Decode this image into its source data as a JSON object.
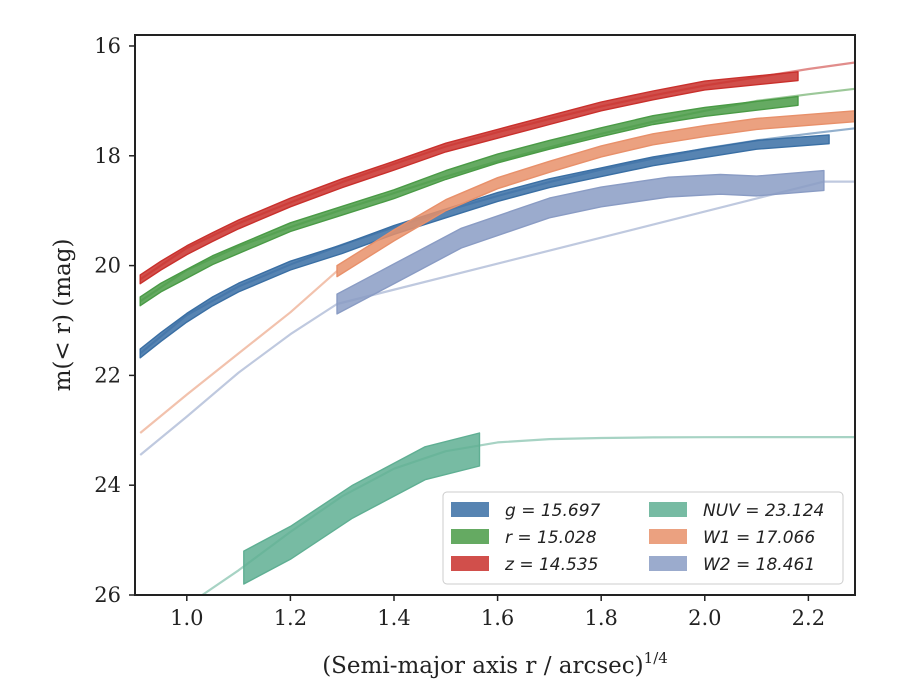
{
  "chart_data": {
    "type": "line",
    "xlabel": "(Semi-major axis r / arcsec)",
    "xlabel_sup": "1/4",
    "ylabel": "m(< r) (mag)",
    "xlim": [
      0.9,
      2.29
    ],
    "ylim": [
      26,
      15.8
    ],
    "y_inverted": true,
    "x_ticks": [
      1.0,
      1.2,
      1.4,
      1.6,
      1.8,
      2.0,
      2.2
    ],
    "x_tick_labels": [
      "1.0",
      "1.2",
      "1.4",
      "1.6",
      "1.8",
      "2.0",
      "2.2"
    ],
    "y_ticks": [
      16,
      18,
      20,
      22,
      24,
      26
    ],
    "y_tick_labels": [
      "16",
      "18",
      "20",
      "22",
      "24",
      "26"
    ],
    "grid": false,
    "legend_position": "lower-right",
    "legend_columns": 2,
    "series": [
      {
        "name": "g = 15.697",
        "color": "#3a6fa4",
        "observed": {
          "x": [
            0.91,
            0.95,
            1.0,
            1.05,
            1.1,
            1.2,
            1.3,
            1.4,
            1.5,
            1.6,
            1.7,
            1.8,
            1.9,
            2.0,
            2.1,
            2.24
          ],
          "y": [
            21.6,
            21.3,
            20.95,
            20.65,
            20.4,
            20.0,
            19.7,
            19.35,
            19.05,
            18.75,
            18.5,
            18.3,
            18.1,
            17.95,
            17.8,
            17.7
          ],
          "band": 0.08
        },
        "model": {
          "x": [
            0.91,
            1.0,
            1.1,
            1.2,
            1.3,
            1.4,
            1.5,
            1.6,
            1.7,
            1.8,
            1.9,
            2.0,
            2.1,
            2.2,
            2.29
          ],
          "y": [
            21.6,
            20.9,
            20.38,
            19.98,
            19.62,
            19.3,
            19.0,
            18.73,
            18.48,
            18.25,
            18.05,
            17.87,
            17.72,
            17.6,
            17.5
          ]
        }
      },
      {
        "name": "r = 15.028",
        "color": "#4a9b46",
        "observed": {
          "x": [
            0.91,
            0.95,
            1.0,
            1.05,
            1.1,
            1.2,
            1.3,
            1.4,
            1.5,
            1.6,
            1.7,
            1.8,
            1.9,
            2.0,
            2.18
          ],
          "y": [
            20.65,
            20.4,
            20.15,
            19.9,
            19.7,
            19.3,
            19.0,
            18.7,
            18.35,
            18.05,
            17.8,
            17.57,
            17.35,
            17.2,
            17.0
          ],
          "band": 0.08
        },
        "model": {
          "x": [
            0.91,
            1.0,
            1.1,
            1.2,
            1.3,
            1.4,
            1.5,
            1.6,
            1.7,
            1.8,
            1.9,
            2.0,
            2.1,
            2.2,
            2.29
          ],
          "y": [
            20.65,
            20.08,
            19.65,
            19.3,
            18.98,
            18.68,
            18.38,
            18.1,
            17.85,
            17.6,
            17.38,
            17.18,
            17.0,
            16.88,
            16.78
          ]
        }
      },
      {
        "name": "z = 14.535",
        "color": "#c9302c",
        "observed": {
          "x": [
            0.91,
            0.95,
            1.0,
            1.05,
            1.1,
            1.2,
            1.3,
            1.4,
            1.5,
            1.6,
            1.7,
            1.8,
            1.9,
            2.0,
            2.18
          ],
          "y": [
            20.25,
            20.0,
            19.72,
            19.48,
            19.25,
            18.85,
            18.5,
            18.18,
            17.85,
            17.6,
            17.35,
            17.1,
            16.9,
            16.72,
            16.55
          ],
          "band": 0.08
        },
        "model": {
          "x": [
            0.91,
            1.0,
            1.1,
            1.2,
            1.3,
            1.4,
            1.5,
            1.6,
            1.7,
            1.8,
            1.9,
            2.0,
            2.1,
            2.2,
            2.29
          ],
          "y": [
            20.25,
            19.68,
            19.23,
            18.85,
            18.48,
            18.15,
            17.83,
            17.57,
            17.33,
            17.1,
            16.9,
            16.72,
            16.57,
            16.42,
            16.3
          ]
        }
      },
      {
        "name": "NUV = 23.124",
        "color": "#5faf93",
        "observed": {
          "x": [
            1.11,
            1.2,
            1.32,
            1.46,
            1.565
          ],
          "y": [
            25.5,
            25.05,
            24.3,
            23.6,
            23.35
          ],
          "band": 0.3
        },
        "model": {
          "x": [
            1.03,
            1.1,
            1.2,
            1.3,
            1.4,
            1.5,
            1.6,
            1.7,
            1.8,
            1.9,
            2.0,
            2.1,
            2.2,
            2.29
          ],
          "y": [
            26.0,
            25.55,
            24.85,
            24.2,
            23.7,
            23.38,
            23.22,
            23.16,
            23.14,
            23.13,
            23.125,
            23.124,
            23.124,
            23.124
          ]
        }
      },
      {
        "name": "W1 = 17.066",
        "color": "#e8906a",
        "observed": {
          "x": [
            1.29,
            1.4,
            1.5,
            1.6,
            1.7,
            1.8,
            1.9,
            2.0,
            2.1,
            2.29
          ],
          "y": [
            20.1,
            19.45,
            18.9,
            18.5,
            18.2,
            17.92,
            17.7,
            17.55,
            17.42,
            17.28
          ],
          "band": 0.1
        },
        "model": {
          "x": [
            0.91,
            1.0,
            1.1,
            1.2,
            1.29
          ],
          "y": [
            23.05,
            22.35,
            21.6,
            20.85,
            20.1
          ]
        }
      },
      {
        "name": "W2 = 18.461",
        "color": "#8a9cc4",
        "observed": {
          "x": [
            1.29,
            1.4,
            1.53,
            1.7,
            1.8,
            1.93,
            2.03,
            2.1,
            2.23
          ],
          "y": [
            20.7,
            20.15,
            19.5,
            18.95,
            18.75,
            18.57,
            18.52,
            18.55,
            18.45
          ],
          "band": 0.18
        },
        "model": {
          "x": [
            0.91,
            1.0,
            1.1,
            1.2,
            1.29,
            2.23,
            2.29
          ],
          "y": [
            23.45,
            22.75,
            21.95,
            21.25,
            20.7,
            18.47,
            18.47
          ]
        }
      }
    ]
  }
}
